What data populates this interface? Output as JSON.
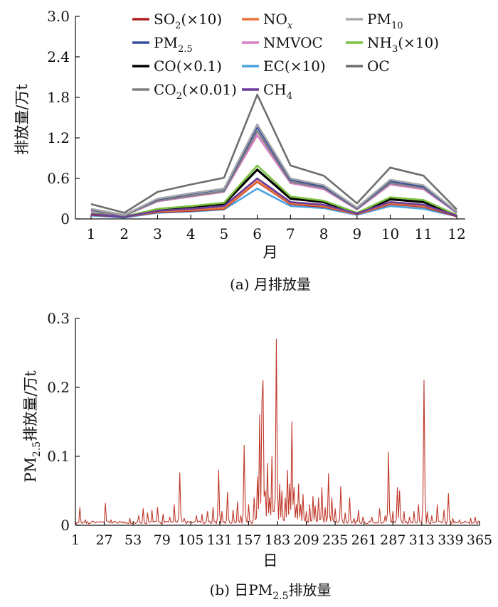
{
  "chart_data": [
    {
      "type": "line",
      "caption": "(a) 月排放量",
      "xlabel": "月",
      "ylabel": "排放量/万t",
      "categories": [
        "1",
        "2",
        "3",
        "4",
        "5",
        "6",
        "7",
        "8",
        "9",
        "10",
        "11",
        "12"
      ],
      "ylim": [
        0,
        3.0
      ],
      "yticks": [
        "0",
        "0.6",
        "1.2",
        "1.8",
        "2.4",
        "3.0"
      ],
      "grid": false,
      "legend_position": "top",
      "series": [
        {
          "name": "SO2(×10)",
          "label_main": "SO",
          "label_sub": "2",
          "label_tail": "(×10)",
          "color": "#b22222",
          "values": [
            0.06,
            0.03,
            0.1,
            0.12,
            0.15,
            0.55,
            0.22,
            0.18,
            0.07,
            0.22,
            0.18,
            0.04
          ]
        },
        {
          "name": "NOx",
          "label_main": "NO",
          "label_sub": "x",
          "label_tail": "",
          "sub_italic": true,
          "color": "#e8743b",
          "values": [
            0.07,
            0.03,
            0.11,
            0.13,
            0.16,
            0.56,
            0.23,
            0.19,
            0.07,
            0.23,
            0.19,
            0.05
          ]
        },
        {
          "name": "PM10",
          "label_main": "PM",
          "label_sub": "10",
          "label_tail": "",
          "color": "#a9a9a9",
          "values": [
            0.15,
            0.06,
            0.3,
            0.38,
            0.45,
            1.4,
            0.6,
            0.5,
            0.17,
            0.58,
            0.5,
            0.11
          ]
        },
        {
          "name": "PM2.5",
          "label_main": "PM",
          "label_sub": "2.5",
          "label_tail": "",
          "color": "#3a4fa0",
          "values": [
            0.14,
            0.06,
            0.29,
            0.37,
            0.44,
            1.36,
            0.58,
            0.48,
            0.16,
            0.56,
            0.48,
            0.1
          ]
        },
        {
          "name": "NMVOC",
          "label_main": "NMVOC",
          "label_sub": "",
          "label_tail": "",
          "color": "#d97fc6",
          "values": [
            0.12,
            0.05,
            0.26,
            0.33,
            0.4,
            1.24,
            0.53,
            0.44,
            0.14,
            0.51,
            0.44,
            0.09
          ]
        },
        {
          "name": "NH3(×10)",
          "label_main": "NH",
          "label_sub": "3",
          "label_tail": "(×10)",
          "color": "#7cc242",
          "values": [
            0.08,
            0.03,
            0.15,
            0.19,
            0.24,
            0.79,
            0.33,
            0.27,
            0.09,
            0.32,
            0.28,
            0.06
          ]
        },
        {
          "name": "CO(×0.1)",
          "label_main": "CO(×0.1)",
          "label_sub": "",
          "label_tail": "",
          "color": "#000000",
          "values": [
            0.08,
            0.03,
            0.14,
            0.18,
            0.22,
            0.73,
            0.3,
            0.25,
            0.08,
            0.29,
            0.25,
            0.05
          ]
        },
        {
          "name": "EC(×10)",
          "label_main": "EC(×10)",
          "label_sub": "",
          "label_tail": "",
          "color": "#4aa3df",
          "values": [
            0.05,
            0.02,
            0.09,
            0.11,
            0.14,
            0.45,
            0.19,
            0.16,
            0.06,
            0.19,
            0.15,
            0.04
          ]
        },
        {
          "name": "OC",
          "label_main": "OC",
          "label_sub": "",
          "label_tail": "",
          "color": "#6e6e6e",
          "values": [
            0.22,
            0.09,
            0.4,
            0.51,
            0.61,
            1.84,
            0.79,
            0.64,
            0.23,
            0.76,
            0.64,
            0.14
          ]
        },
        {
          "name": "CO2(×0.01)",
          "label_main": "CO",
          "label_sub": "2",
          "label_tail": "(×0.01)",
          "color": "#808080",
          "values": [
            0.13,
            0.05,
            0.27,
            0.34,
            0.41,
            1.3,
            0.55,
            0.46,
            0.15,
            0.53,
            0.46,
            0.1
          ]
        },
        {
          "name": "CH4",
          "label_main": "CH",
          "label_sub": "4",
          "label_tail": "",
          "color": "#6a3d9a",
          "values": [
            0.07,
            0.03,
            0.12,
            0.15,
            0.19,
            0.6,
            0.25,
            0.21,
            0.08,
            0.25,
            0.21,
            0.05
          ]
        }
      ]
    },
    {
      "type": "line",
      "caption_main": "(b) 日PM",
      "caption_sub": "2.5",
      "caption_tail": "排放量",
      "xlabel": "日",
      "ylabel_main": "PM",
      "ylabel_sub": "2.5",
      "ylabel_tail": "排放量/万t",
      "xlim": [
        1,
        365
      ],
      "xticks": [
        1,
        27,
        53,
        79,
        105,
        131,
        157,
        183,
        209,
        235,
        261,
        287,
        313,
        339,
        365
      ],
      "ylim": [
        0,
        0.3
      ],
      "yticks": [
        "0",
        "0.1",
        "0.2",
        "0.3"
      ],
      "grid": false,
      "series": [
        {
          "name": "PM2.5",
          "color": "#c0392b",
          "baseline": 0.002,
          "peaks": [
            [
              5,
              0.026
            ],
            [
              10,
              0.008
            ],
            [
              17,
              0.006
            ],
            [
              28,
              0.032
            ],
            [
              33,
              0.008
            ],
            [
              41,
              0.006
            ],
            [
              50,
              0.01
            ],
            [
              58,
              0.014
            ],
            [
              62,
              0.024
            ],
            [
              66,
              0.018
            ],
            [
              70,
              0.022
            ],
            [
              75,
              0.026
            ],
            [
              80,
              0.016
            ],
            [
              86,
              0.012
            ],
            [
              90,
              0.03
            ],
            [
              95,
              0.076
            ],
            [
              99,
              0.01
            ],
            [
              110,
              0.014
            ],
            [
              115,
              0.016
            ],
            [
              120,
              0.02
            ],
            [
              125,
              0.026
            ],
            [
              130,
              0.08
            ],
            [
              133,
              0.02
            ],
            [
              138,
              0.048
            ],
            [
              143,
              0.022
            ],
            [
              147,
              0.034
            ],
            [
              150,
              0.014
            ],
            [
              153,
              0.116
            ],
            [
              157,
              0.03
            ],
            [
              162,
              0.04
            ],
            [
              165,
              0.07
            ],
            [
              167,
              0.16
            ],
            [
              168,
              0.02
            ],
            [
              169,
              0.18
            ],
            [
              170,
              0.21
            ],
            [
              172,
              0.05
            ],
            [
              174,
              0.09
            ],
            [
              176,
              0.04
            ],
            [
              178,
              0.1
            ],
            [
              180,
              0.02
            ],
            [
              182,
              0.27
            ],
            [
              185,
              0.06
            ],
            [
              187,
              0.05
            ],
            [
              190,
              0.04
            ],
            [
              192,
              0.08
            ],
            [
              194,
              0.06
            ],
            [
              196,
              0.15
            ],
            [
              198,
              0.055
            ],
            [
              200,
              0.03
            ],
            [
              202,
              0.06
            ],
            [
              204,
              0.03
            ],
            [
              206,
              0.045
            ],
            [
              209,
              0.02
            ],
            [
              212,
              0.03
            ],
            [
              215,
              0.042
            ],
            [
              217,
              0.028
            ],
            [
              220,
              0.04
            ],
            [
              223,
              0.055
            ],
            [
              226,
              0.026
            ],
            [
              229,
              0.075
            ],
            [
              232,
              0.04
            ],
            [
              235,
              0.024
            ],
            [
              240,
              0.056
            ],
            [
              244,
              0.018
            ],
            [
              248,
              0.04
            ],
            [
              252,
              0.01
            ],
            [
              256,
              0.022
            ],
            [
              260,
              0.012
            ],
            [
              268,
              0.012
            ],
            [
              275,
              0.024
            ],
            [
              280,
              0.014
            ],
            [
              283,
              0.106
            ],
            [
              287,
              0.02
            ],
            [
              291,
              0.055
            ],
            [
              293,
              0.05
            ],
            [
              297,
              0.02
            ],
            [
              302,
              0.012
            ],
            [
              306,
              0.02
            ],
            [
              310,
              0.03
            ],
            [
              315,
              0.21
            ],
            [
              318,
              0.02
            ],
            [
              322,
              0.014
            ],
            [
              327,
              0.03
            ],
            [
              333,
              0.022
            ],
            [
              337,
              0.046
            ],
            [
              341,
              0.01
            ],
            [
              347,
              0.008
            ],
            [
              352,
              0.006
            ],
            [
              357,
              0.01
            ],
            [
              361,
              0.012
            ],
            [
              364,
              0.006
            ]
          ]
        }
      ]
    }
  ]
}
